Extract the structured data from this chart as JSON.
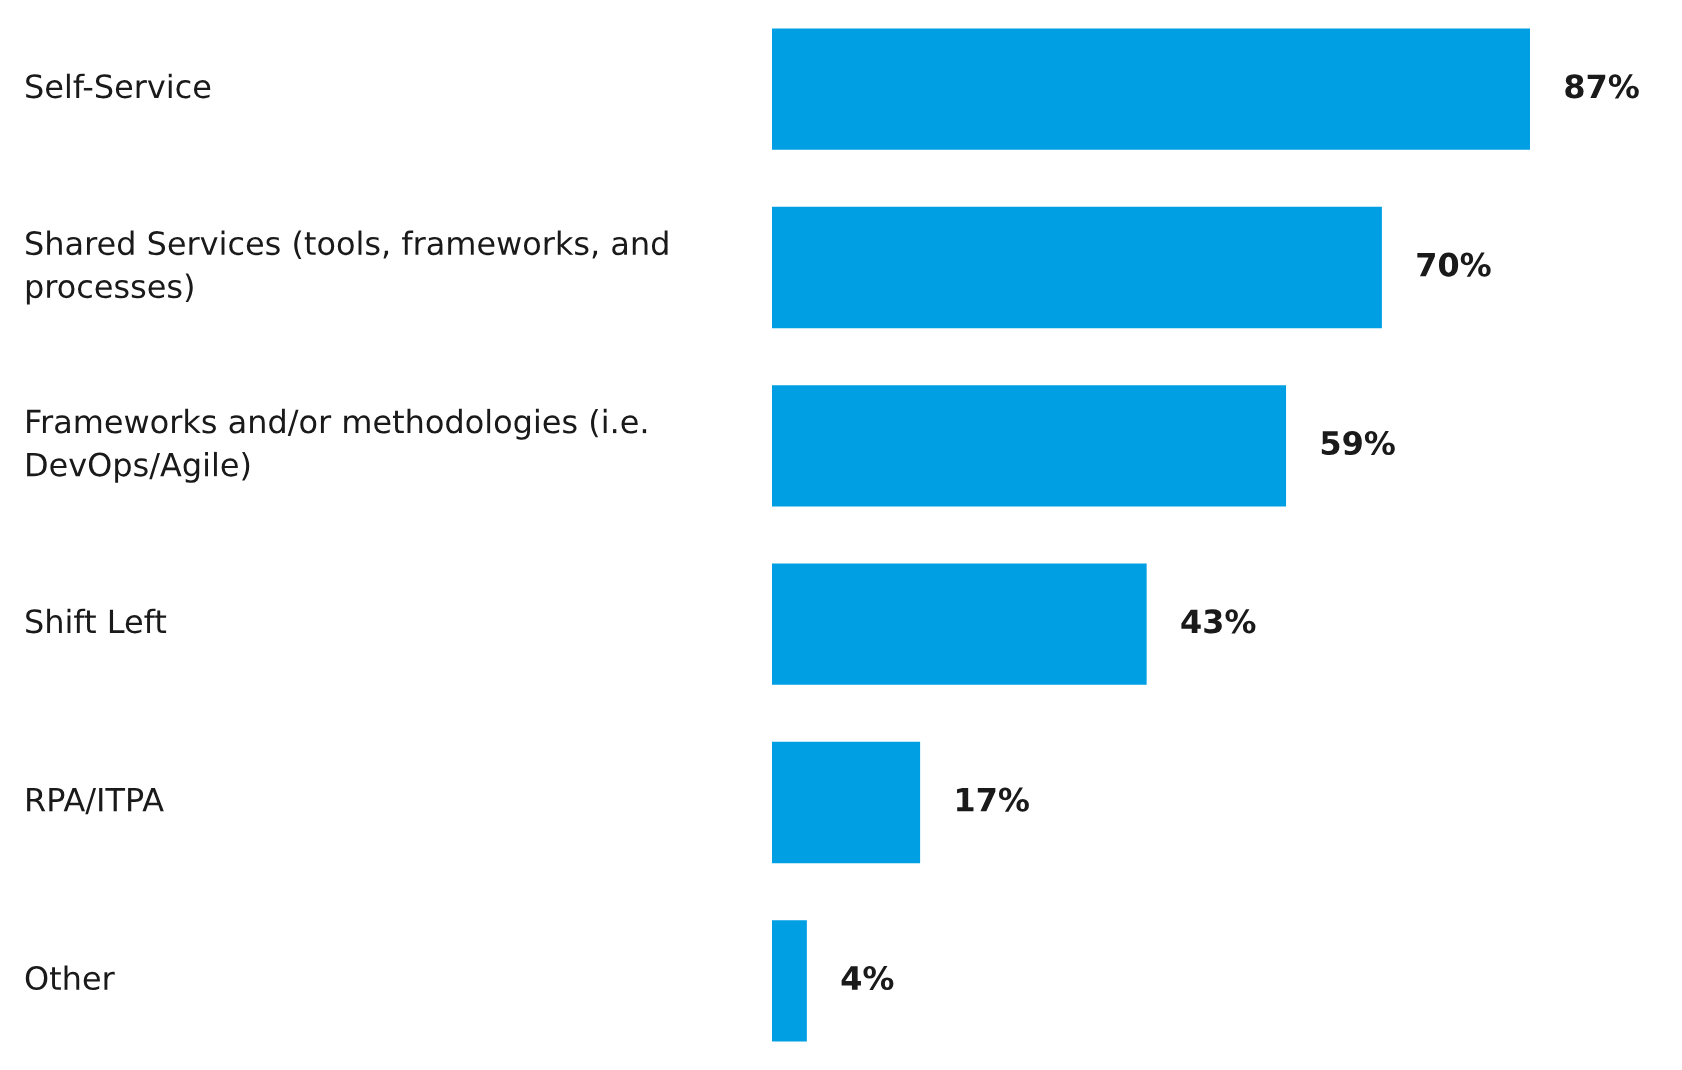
{
  "chart_data": {
    "type": "bar",
    "orientation": "horizontal",
    "categories": [
      "Self-Service",
      "Shared Services (tools, frameworks, and processes)",
      "Frameworks and/or methodologies (i.e. DevOps/Agile)",
      "Shift Left",
      "RPA/ITPA",
      "Other"
    ],
    "values": [
      87,
      70,
      59,
      43,
      17,
      4
    ],
    "value_labels": [
      "87%",
      "70%",
      "59%",
      "43%",
      "17%",
      "4%"
    ],
    "color": "#009fe3"
  }
}
